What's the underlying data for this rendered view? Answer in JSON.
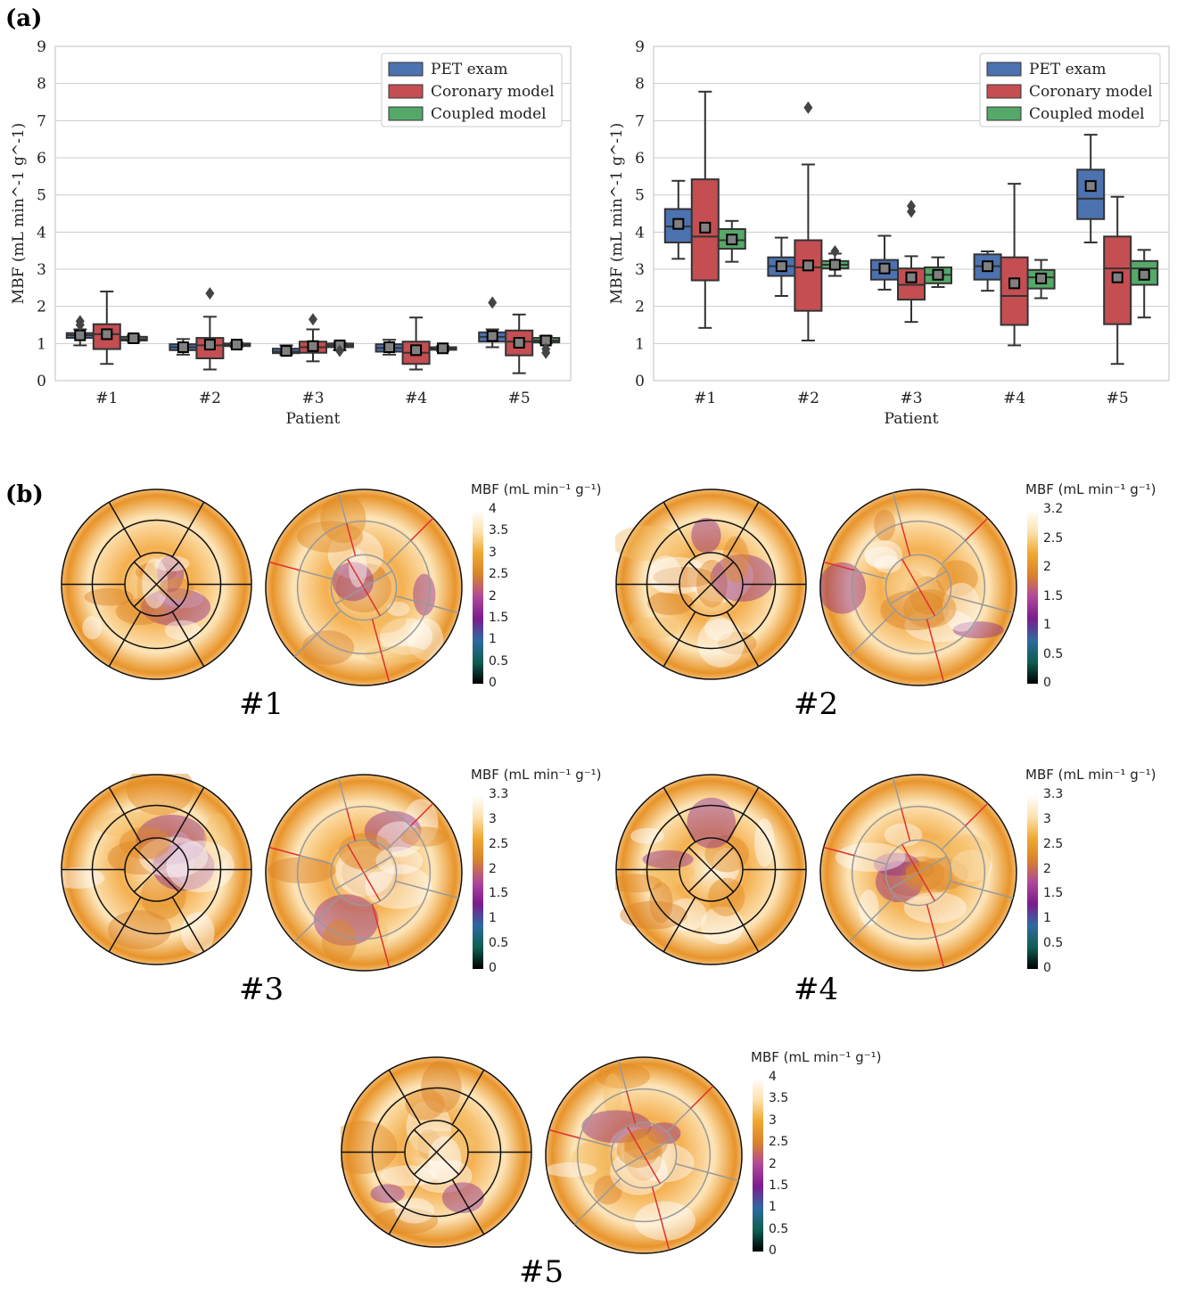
{
  "labels": {
    "panel_a": "(a)",
    "panel_b": "(b)"
  },
  "chart_data": [
    {
      "type": "box",
      "title": "",
      "xlabel": "Patient",
      "ylabel": "MBF (mL min^-1 g^-1)",
      "categories": [
        "#1",
        "#2",
        "#3",
        "#4",
        "#5"
      ],
      "ylim": [
        0,
        9
      ],
      "yticks": [
        0,
        1,
        2,
        3,
        4,
        5,
        6,
        7,
        8,
        9
      ],
      "grid": "horizontal",
      "legend_position": "top-right",
      "series": [
        {
          "name": "PET exam",
          "color": "#4c72b0",
          "boxes": [
            {
              "wlo": 0.95,
              "q1": 1.15,
              "med": 1.22,
              "q3": 1.28,
              "whi": 1.38,
              "mean": 1.22,
              "outliers": [
                1.5,
                1.6
              ]
            },
            {
              "wlo": 0.7,
              "q1": 0.82,
              "med": 0.9,
              "q3": 0.98,
              "whi": 1.12,
              "mean": 0.9,
              "outliers": []
            },
            {
              "wlo": 0.7,
              "q1": 0.74,
              "med": 0.78,
              "q3": 0.86,
              "whi": 0.95,
              "mean": 0.8,
              "outliers": []
            },
            {
              "wlo": 0.7,
              "q1": 0.78,
              "med": 0.88,
              "q3": 0.98,
              "whi": 1.1,
              "mean": 0.9,
              "outliers": []
            },
            {
              "wlo": 0.9,
              "q1": 1.05,
              "med": 1.18,
              "q3": 1.3,
              "whi": 1.38,
              "mean": 1.2,
              "outliers": [
                2.1
              ]
            }
          ]
        },
        {
          "name": "Coronary model",
          "color": "#c44e52",
          "boxes": [
            {
              "wlo": 0.45,
              "q1": 0.85,
              "med": 1.25,
              "q3": 1.52,
              "whi": 2.4,
              "mean": 1.25,
              "outliers": []
            },
            {
              "wlo": 0.3,
              "q1": 0.6,
              "med": 0.95,
              "q3": 1.15,
              "whi": 1.72,
              "mean": 0.97,
              "outliers": [
                2.35
              ]
            },
            {
              "wlo": 0.52,
              "q1": 0.75,
              "med": 0.9,
              "q3": 1.05,
              "whi": 1.38,
              "mean": 0.93,
              "outliers": [
                1.65
              ]
            },
            {
              "wlo": 0.3,
              "q1": 0.45,
              "med": 0.75,
              "q3": 1.05,
              "whi": 1.7,
              "mean": 0.82,
              "outliers": []
            },
            {
              "wlo": 0.2,
              "q1": 0.68,
              "med": 1.05,
              "q3": 1.35,
              "whi": 1.78,
              "mean": 1.02,
              "outliers": []
            }
          ]
        },
        {
          "name": "Coupled model",
          "color": "#55a868",
          "boxes": [
            {
              "wlo": 1.05,
              "q1": 1.08,
              "med": 1.12,
              "q3": 1.18,
              "whi": 1.22,
              "mean": 1.14,
              "outliers": []
            },
            {
              "wlo": 0.9,
              "q1": 0.93,
              "med": 0.97,
              "q3": 1.0,
              "whi": 1.03,
              "mean": 0.97,
              "outliers": []
            },
            {
              "wlo": 0.82,
              "q1": 0.9,
              "med": 0.95,
              "q3": 1.0,
              "whi": 1.02,
              "mean": 0.95,
              "outliers": [
                0.8
              ]
            },
            {
              "wlo": 0.8,
              "q1": 0.83,
              "med": 0.87,
              "q3": 0.9,
              "whi": 0.93,
              "mean": 0.87,
              "outliers": []
            },
            {
              "wlo": 1.0,
              "q1": 1.03,
              "med": 1.08,
              "q3": 1.15,
              "whi": 1.2,
              "mean": 1.08,
              "outliers": [
                0.75,
                0.85
              ]
            }
          ]
        }
      ]
    },
    {
      "type": "box",
      "title": "",
      "xlabel": "Patient",
      "ylabel": "MBF (mL min^-1 g^-1)",
      "categories": [
        "#1",
        "#2",
        "#3",
        "#4",
        "#5"
      ],
      "ylim": [
        0,
        9
      ],
      "yticks": [
        0,
        1,
        2,
        3,
        4,
        5,
        6,
        7,
        8,
        9
      ],
      "grid": "horizontal",
      "legend_position": "top-right",
      "series": [
        {
          "name": "PET exam",
          "color": "#4c72b0",
          "boxes": [
            {
              "wlo": 3.28,
              "q1": 3.72,
              "med": 4.15,
              "q3": 4.62,
              "whi": 5.38,
              "mean": 4.22,
              "outliers": []
            },
            {
              "wlo": 2.28,
              "q1": 2.82,
              "med": 3.08,
              "q3": 3.32,
              "whi": 3.85,
              "mean": 3.08,
              "outliers": []
            },
            {
              "wlo": 2.45,
              "q1": 2.72,
              "med": 2.98,
              "q3": 3.25,
              "whi": 3.9,
              "mean": 3.02,
              "outliers": []
            },
            {
              "wlo": 2.42,
              "q1": 2.72,
              "med": 3.08,
              "q3": 3.4,
              "whi": 3.48,
              "mean": 3.08,
              "outliers": []
            },
            {
              "wlo": 3.72,
              "q1": 4.35,
              "med": 4.9,
              "q3": 5.68,
              "whi": 6.62,
              "mean": 5.24,
              "outliers": []
            }
          ]
        },
        {
          "name": "Coronary model",
          "color": "#c44e52",
          "boxes": [
            {
              "wlo": 1.42,
              "q1": 2.7,
              "med": 3.88,
              "q3": 5.42,
              "whi": 7.78,
              "mean": 4.12,
              "outliers": []
            },
            {
              "wlo": 1.08,
              "q1": 1.88,
              "med": 3.05,
              "q3": 3.78,
              "whi": 5.82,
              "mean": 3.1,
              "outliers": [
                7.35
              ]
            },
            {
              "wlo": 1.58,
              "q1": 2.18,
              "med": 2.58,
              "q3": 3.02,
              "whi": 3.35,
              "mean": 2.78,
              "outliers": [
                4.55,
                4.7
              ]
            },
            {
              "wlo": 0.95,
              "q1": 1.5,
              "med": 2.28,
              "q3": 3.32,
              "whi": 5.3,
              "mean": 2.62,
              "outliers": []
            },
            {
              "wlo": 0.45,
              "q1": 1.52,
              "med": 3.02,
              "q3": 3.88,
              "whi": 4.95,
              "mean": 2.78,
              "outliers": []
            }
          ]
        },
        {
          "name": "Coupled model",
          "color": "#55a868",
          "boxes": [
            {
              "wlo": 3.2,
              "q1": 3.55,
              "med": 3.78,
              "q3": 4.08,
              "whi": 4.3,
              "mean": 3.8,
              "outliers": []
            },
            {
              "wlo": 2.82,
              "q1": 3.02,
              "med": 3.12,
              "q3": 3.22,
              "whi": 3.42,
              "mean": 3.12,
              "outliers": [
                3.48
              ]
            },
            {
              "wlo": 2.52,
              "q1": 2.62,
              "med": 2.85,
              "q3": 3.05,
              "whi": 3.32,
              "mean": 2.85,
              "outliers": []
            },
            {
              "wlo": 2.22,
              "q1": 2.48,
              "med": 2.78,
              "q3": 2.98,
              "whi": 3.25,
              "mean": 2.75,
              "outliers": []
            },
            {
              "wlo": 1.7,
              "q1": 2.58,
              "med": 3.02,
              "q3": 3.22,
              "whi": 3.52,
              "mean": 2.85,
              "outliers": []
            }
          ]
        }
      ]
    }
  ],
  "bullseyes": [
    {
      "caption": "#1",
      "colorbar_title": "MBF (mL min⁻¹ g⁻¹)",
      "ticks": [
        "4",
        "3.5",
        "3",
        "2.5",
        "2",
        "1.5",
        "1",
        "0.5",
        "0"
      ]
    },
    {
      "caption": "#2",
      "colorbar_title": "MBF (mL min⁻¹ g⁻¹)",
      "ticks": [
        "3.2",
        "2.5",
        "2",
        "1.5",
        "1",
        "0.5",
        "0"
      ]
    },
    {
      "caption": "#3",
      "colorbar_title": "MBF (mL min⁻¹ g⁻¹)",
      "ticks": [
        "3.3",
        "3",
        "2.5",
        "2",
        "1.5",
        "1",
        "0.5",
        "0"
      ]
    },
    {
      "caption": "#4",
      "colorbar_title": "MBF (mL min⁻¹ g⁻¹)",
      "ticks": [
        "3.3",
        "3",
        "2.5",
        "2",
        "1.5",
        "1",
        "0.5",
        "0"
      ]
    },
    {
      "caption": "#5",
      "colorbar_title": "MBF (mL min⁻¹ g⁻¹)",
      "ticks": [
        "4",
        "3.5",
        "3",
        "2.5",
        "2",
        "1.5",
        "1",
        "0.5",
        "0"
      ]
    }
  ],
  "colors": {
    "colormap": [
      "#000000",
      "#0f5e52",
      "#2e6aa0",
      "#7a1d8c",
      "#b0489a",
      "#d9822b",
      "#f0a830",
      "#fde2b0",
      "#ffffff"
    ],
    "segment_black": "#111111",
    "segment_gray": "#999999",
    "segment_red": "#e03030",
    "grid": "#cccccc",
    "axis": "#333333",
    "median": "#333333",
    "mean_marker": "#808080"
  }
}
